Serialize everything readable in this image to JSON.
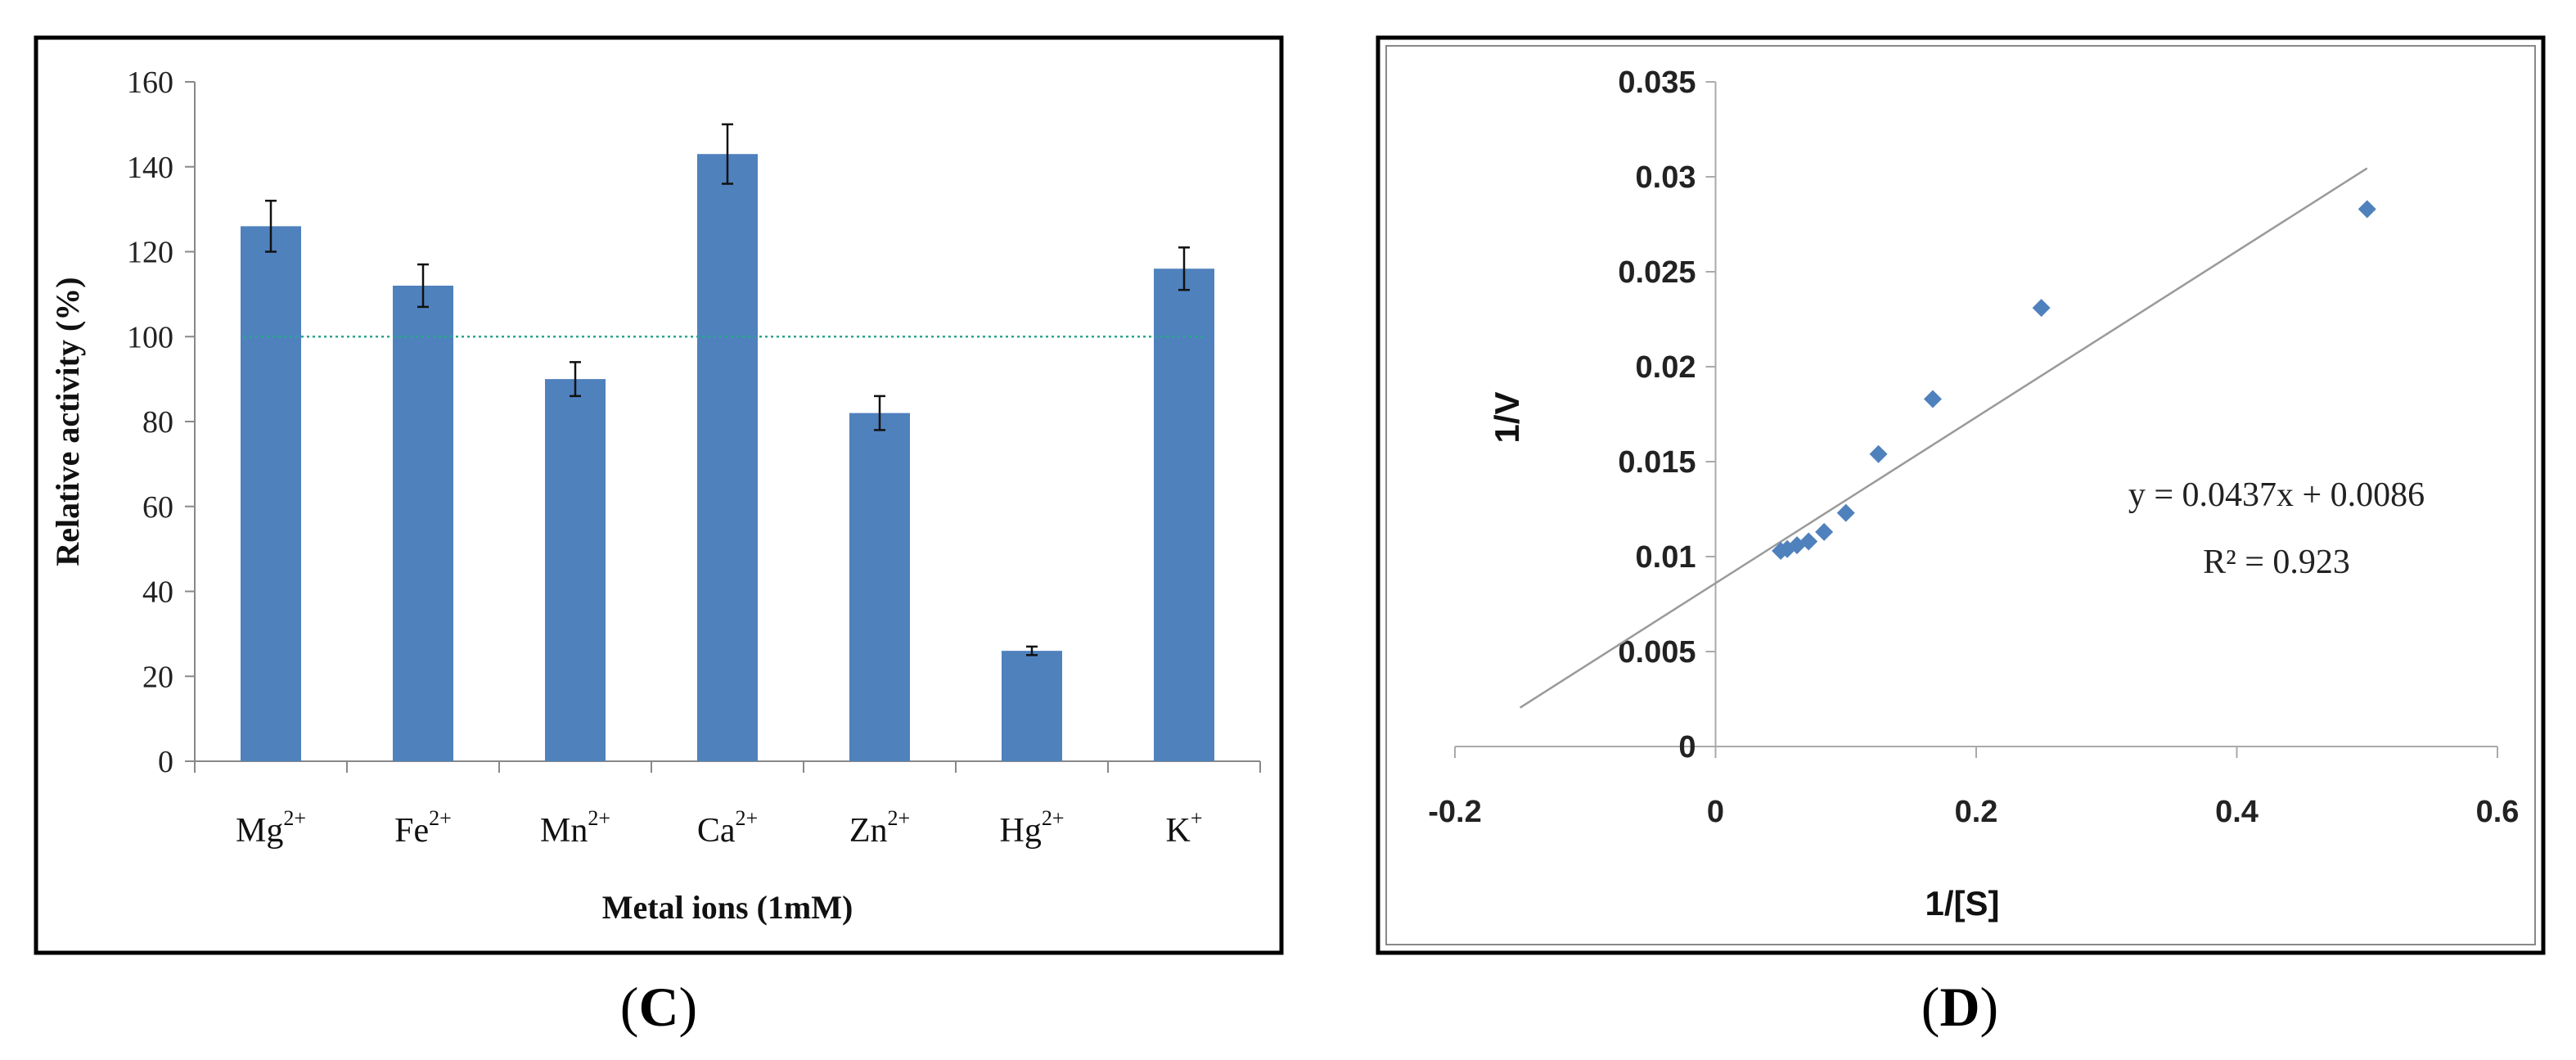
{
  "chart_data": [
    {
      "type": "bar",
      "panel_label": "C",
      "xlabel": "Metal ions (1mM)",
      "ylabel": "Relative activity (%)",
      "ylim": [
        0,
        160
      ],
      "yticks": [
        "0",
        "20",
        "40",
        "60",
        "80",
        "100",
        "120",
        "140",
        "160"
      ],
      "categories": [
        {
          "base": "Mg",
          "sup": "2+"
        },
        {
          "base": "Fe",
          "sup": "2+"
        },
        {
          "base": "Mn",
          "sup": "2+"
        },
        {
          "base": "Ca",
          "sup": "2+"
        },
        {
          "base": "Zn",
          "sup": "2+"
        },
        {
          "base": "Hg",
          "sup": "2+"
        },
        {
          "base": "K",
          "sup": "+"
        }
      ],
      "values": [
        126,
        112,
        90,
        143,
        82,
        26,
        116
      ],
      "errors": [
        6,
        5,
        4,
        7,
        4,
        1,
        5
      ],
      "reference_line": 100,
      "bar_color": "#4f81bd",
      "reference_color": "#2ca58d"
    },
    {
      "type": "scatter",
      "panel_label": "D",
      "xlabel": "1/[S]",
      "ylabel": "1/V",
      "xlim": [
        -0.2,
        0.6
      ],
      "ylim": [
        0,
        0.035
      ],
      "xticks": [
        "-0.2",
        "0",
        "0.2",
        "0.4",
        "0.6"
      ],
      "yticks": [
        "0",
        "0.005",
        "0.01",
        "0.015",
        "0.02",
        "0.025",
        "0.03",
        "0.035"
      ],
      "points": [
        {
          "x": 0.05,
          "y": 0.0103
        },
        {
          "x": 0.055,
          "y": 0.0104
        },
        {
          "x": 0.0625,
          "y": 0.0106
        },
        {
          "x": 0.0714,
          "y": 0.0108
        },
        {
          "x": 0.0833,
          "y": 0.0113
        },
        {
          "x": 0.1,
          "y": 0.0123
        },
        {
          "x": 0.125,
          "y": 0.0154
        },
        {
          "x": 0.1667,
          "y": 0.0183
        },
        {
          "x": 0.25,
          "y": 0.0231
        },
        {
          "x": 0.5,
          "y": 0.0283
        }
      ],
      "trendline": {
        "slope": 0.0437,
        "intercept": 0.0086,
        "x_from": -0.15,
        "x_to": 0.5
      },
      "equation": "y = 0.0437x + 0.0086",
      "r_squared": "R² = 0.923",
      "marker_color": "#4f81bd",
      "trend_color": "#9a9a9a"
    }
  ]
}
